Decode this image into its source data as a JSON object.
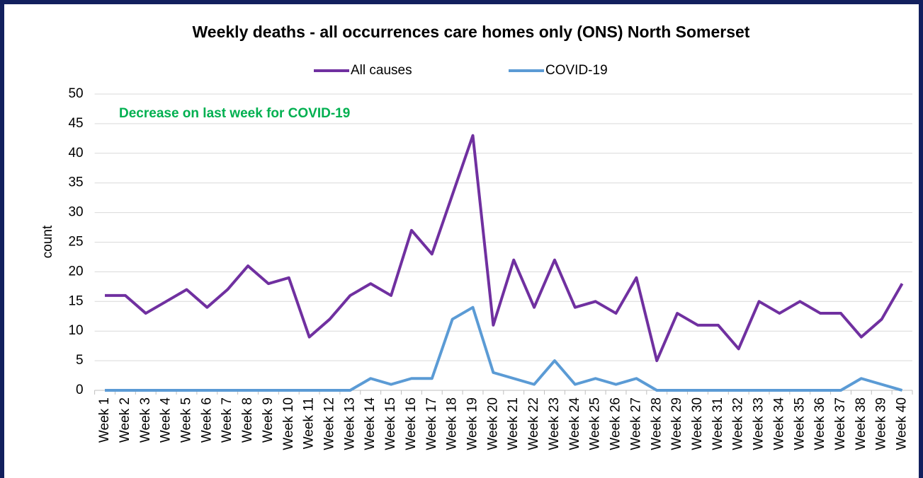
{
  "chart_data": {
    "type": "line",
    "title": "Weekly deaths - all occurrences care homes only (ONS) North Somerset",
    "y_label": "count",
    "annotation": "Decrease on last week for COVID-19",
    "categories": [
      "Week 1",
      "Week 2",
      "Week 3",
      "Week 4",
      "Week 5",
      "Week 6",
      "Week 7",
      "Week 8",
      "Week 9",
      "Week 10",
      "Week 11",
      "Week 12",
      "Week 13",
      "Week 14",
      "Week 15",
      "Week 16",
      "Week 17",
      "Week 18",
      "Week 19",
      "Week 20",
      "Week 21",
      "Week 22",
      "Week 23",
      "Week 24",
      "Week 25",
      "Week 26",
      "Week 27",
      "Week 28",
      "Week 29",
      "Week 30",
      "Week 31",
      "Week 32",
      "Week 33",
      "Week 34",
      "Week 35",
      "Week 36",
      "Week 37",
      "Week 38",
      "Week 39",
      "Week 40"
    ],
    "series": [
      {
        "name": "All causes",
        "color": "#7030a0",
        "values": [
          16,
          16,
          13,
          15,
          17,
          14,
          17,
          21,
          18,
          19,
          9,
          12,
          16,
          18,
          16,
          27,
          23,
          33,
          43,
          11,
          22,
          14,
          22,
          14,
          15,
          13,
          19,
          5,
          13,
          11,
          11,
          7,
          15,
          13,
          15,
          13,
          13,
          9,
          12,
          18
        ]
      },
      {
        "name": "COVID-19",
        "color": "#5b9bd5",
        "values": [
          0,
          0,
          0,
          0,
          0,
          0,
          0,
          0,
          0,
          0,
          0,
          0,
          0,
          2,
          1,
          2,
          2,
          12,
          14,
          3,
          2,
          1,
          5,
          1,
          2,
          1,
          2,
          0,
          0,
          0,
          0,
          0,
          0,
          0,
          0,
          0,
          0,
          2,
          1,
          0
        ]
      }
    ],
    "ylim": [
      0,
      50
    ],
    "yticks": [
      0,
      5,
      10,
      15,
      20,
      25,
      30,
      35,
      40,
      45,
      50
    ],
    "grid": true,
    "legend": "top"
  }
}
